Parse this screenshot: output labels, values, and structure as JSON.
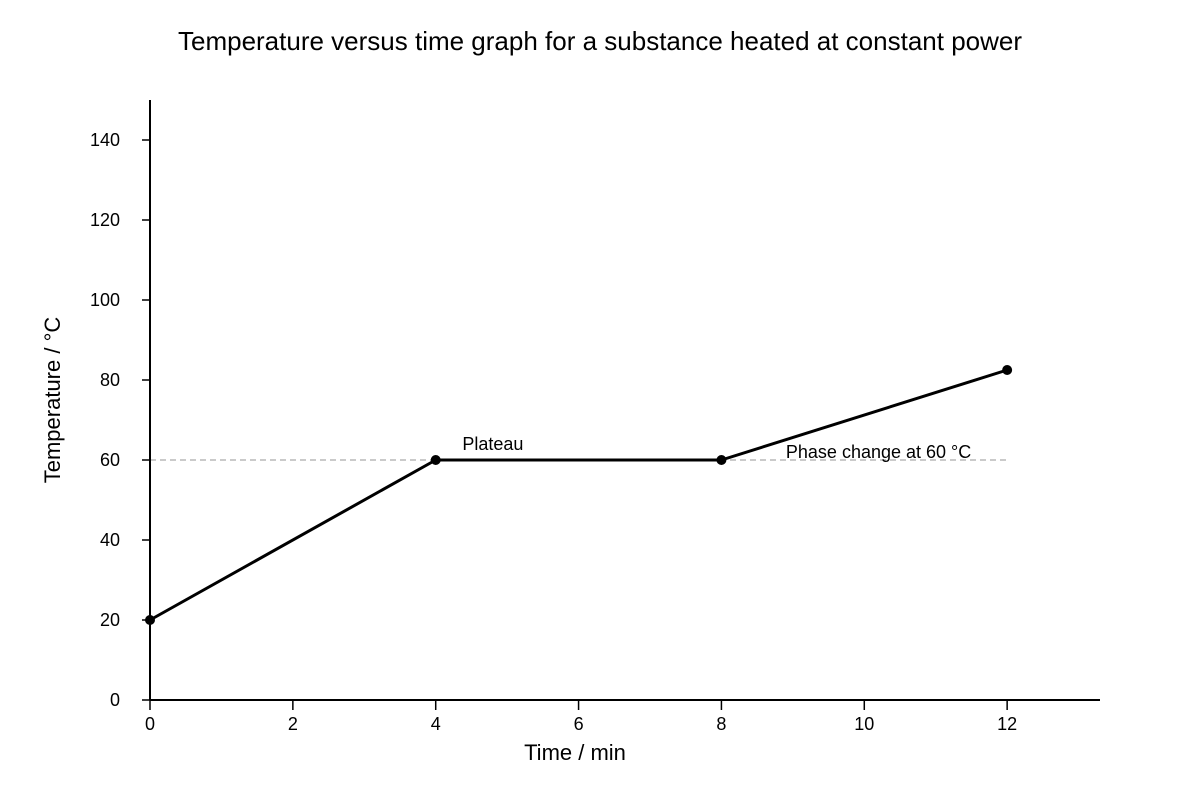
{
  "chart_data": {
    "type": "line",
    "title": "Temperature versus time graph for a substance heated at constant power",
    "xlabel": "Time / min",
    "ylabel": "Temperature / °C",
    "xlim": [
      0,
      13.3
    ],
    "ylim": [
      0,
      150
    ],
    "xticks": [
      0,
      2,
      4,
      6,
      8,
      10,
      12
    ],
    "yticks": [
      0,
      20,
      40,
      60,
      80,
      100,
      120,
      140
    ],
    "grid": false,
    "series": [
      {
        "x": [
          0,
          4,
          8,
          12
        ],
        "y": [
          20,
          60,
          60,
          82.5
        ],
        "color": "#000000"
      }
    ],
    "reference_line": {
      "y": 60,
      "x_range": [
        0,
        12
      ],
      "color": "#aaaaaa",
      "style": "dashed"
    },
    "annotations": [
      {
        "text": "Plateau",
        "x": 4.8,
        "y": 64
      },
      {
        "text": "Phase change at 60 °C",
        "x": 10.2,
        "y": 62
      }
    ]
  }
}
